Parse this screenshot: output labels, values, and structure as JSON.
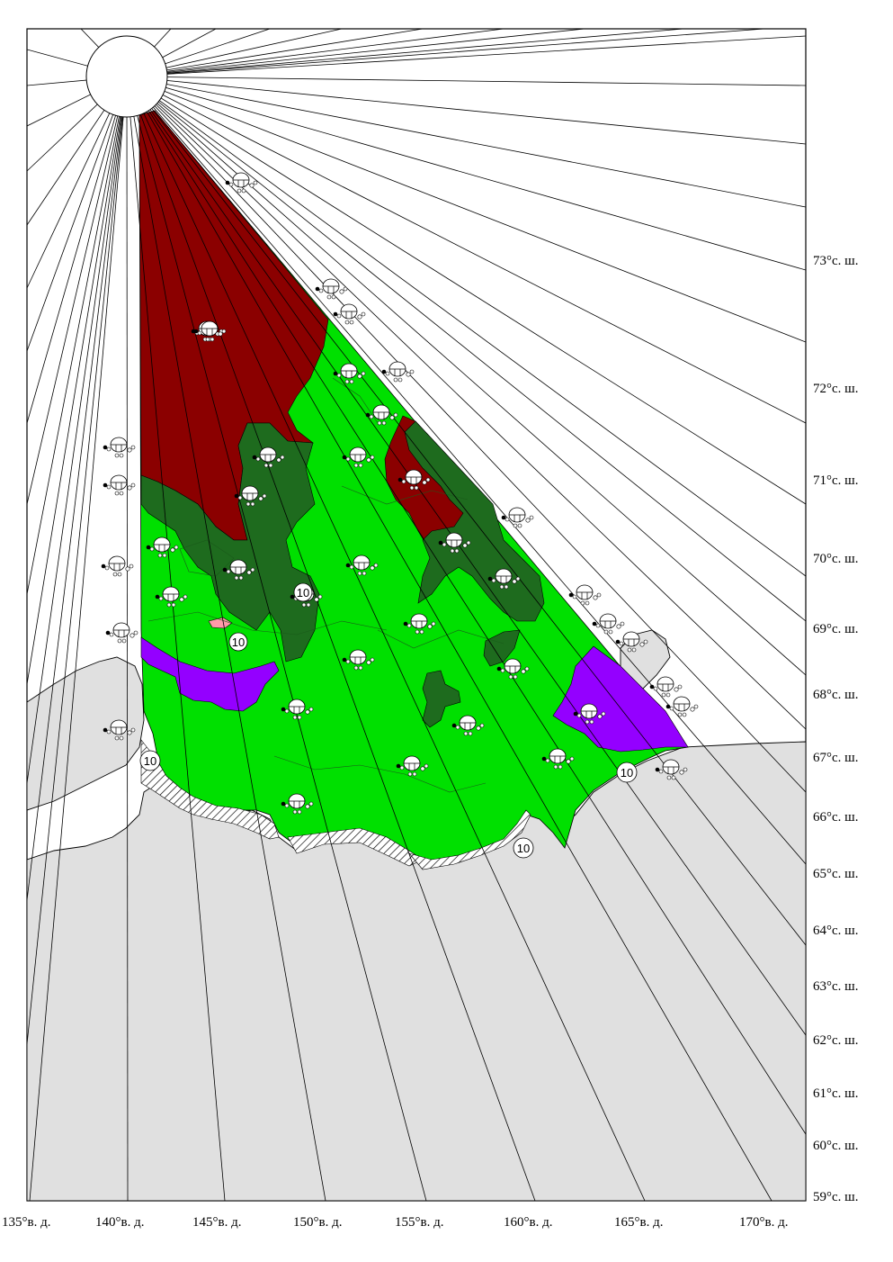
{
  "colors": {
    "multiyear_ice": "#8b0000",
    "thick_ice": "#1e6b1e",
    "young_ice": "#00e000",
    "nilas": "#9400ff",
    "pink_patch": "#ff9aa8",
    "land": "#e0e0e0",
    "water": "#ffffff"
  },
  "icons": {
    "ice_symbol": "egg-code-icon",
    "thickness_marker": "circled-number-icon"
  },
  "longitude_labels": [
    "135°в. д.",
    "140°в. д.",
    "145°в. д.",
    "150°в. д.",
    "155°в. д.",
    "160°в. д.",
    "165°в. д.",
    "170°в. д."
  ],
  "latitude_labels": [
    "73°с. ш.",
    "72°с. ш.",
    "71°с. ш.",
    "70°с. ш.",
    "69°с. ш.",
    "68°с. ш.",
    "67°с. ш.",
    "66°с. ш.",
    "65°с. ш.",
    "64°с. ш.",
    "63°с. ш.",
    "62°с. ш.",
    "61°с. ш.",
    "60°с. ш.",
    "59°с. ш."
  ],
  "thickness_markers": [
    "10",
    "10",
    "10",
    "10",
    "10"
  ]
}
